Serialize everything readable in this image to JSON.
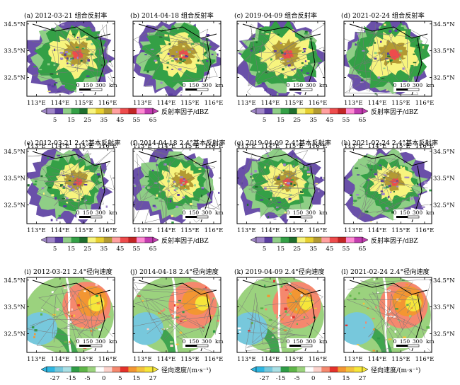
{
  "chart_data": {
    "type": "heatmap",
    "axes": {
      "x_ticks": [
        "113°E",
        "114°E",
        "115°E",
        "116°E"
      ],
      "y_ticks": [
        "34.5°N",
        "33.5°N",
        "32.5°N"
      ],
      "x_values": [
        113,
        114,
        115,
        116
      ],
      "y_values": [
        34.5,
        33.5,
        32.5
      ],
      "xlim": [
        112.6,
        116.3
      ],
      "ylim": [
        31.8,
        34.6
      ],
      "scale_labels": [
        "0",
        "150",
        "300",
        "km"
      ]
    },
    "colorbars": {
      "reflectivity": {
        "label": "反射率因子/dBZ",
        "tick_labels": [
          "5",
          "15",
          "25",
          "35",
          "45",
          "55",
          "65"
        ],
        "colors": [
          "#9f86c7",
          "#5a3da0",
          "#8fce86",
          "#34a046",
          "#1f6e2d",
          "#f7f47e",
          "#e7cf30",
          "#b39a33",
          "#ffa0a0",
          "#ee4c4c",
          "#c22525",
          "#ff8ad2",
          "#c23cb0"
        ]
      },
      "velocity": {
        "label": "径向速度/(m·s⁻¹)",
        "tick_labels": [
          "-27",
          "-15",
          "-5",
          "0",
          "5",
          "15",
          "27"
        ],
        "colors": [
          "#2fb6e1",
          "#77c8dc",
          "#a9dfe4",
          "#2f9c46",
          "#5fb649",
          "#9bd27e",
          "#ffffff",
          "#fbd2cc",
          "#f5886e",
          "#e4322b",
          "#f39632",
          "#f4c23b",
          "#f6e63a"
        ]
      }
    },
    "panels": [
      {
        "label": "(a) 2012-03-21 组合反射率",
        "field": "reflectivity",
        "level": 0.55,
        "ne": 0.8
      },
      {
        "label": "(b) 2014-04-18 组合反射率",
        "field": "reflectivity",
        "level": 0.5,
        "ne": 0.55
      },
      {
        "label": "(c) 2019-04-09 组合反射率",
        "field": "reflectivity",
        "level": 0.6,
        "ne": 0.6
      },
      {
        "label": "(d) 2021-02-24 组合反射率",
        "field": "reflectivity",
        "level": 0.6,
        "ne": 0.7
      },
      {
        "label": "(e) 2012-03-21 2.4°基本反射率",
        "field": "reflectivity",
        "level": 0.35,
        "ne": 0.6
      },
      {
        "label": "(f) 2014-04-18 2.4°基本反射率",
        "field": "reflectivity",
        "level": 0.35,
        "ne": 0.4
      },
      {
        "label": "(g) 2019-04-09 2.4°基本反射率",
        "field": "reflectivity",
        "level": 0.4,
        "ne": 0.5
      },
      {
        "label": "(h) 2021-02-24 2.4°基本反射率",
        "field": "reflectivity",
        "level": 0.35,
        "ne": 0.6
      },
      {
        "label": "(i) 2012-03-21 2.4°径向速度",
        "field": "velocity",
        "level": 0.7,
        "ne": 0.8
      },
      {
        "label": "(j) 2014-04-18 2.4°径向速度",
        "field": "velocity",
        "level": 0.6,
        "ne": 0.4
      },
      {
        "label": "(k) 2019-04-09 2.4°径向速度",
        "field": "velocity",
        "level": 0.55,
        "ne": 0.3
      },
      {
        "label": "(l) 2021-02-24 2.4°径向速度",
        "field": "velocity",
        "level": 0.7,
        "ne": 0.6
      }
    ]
  }
}
